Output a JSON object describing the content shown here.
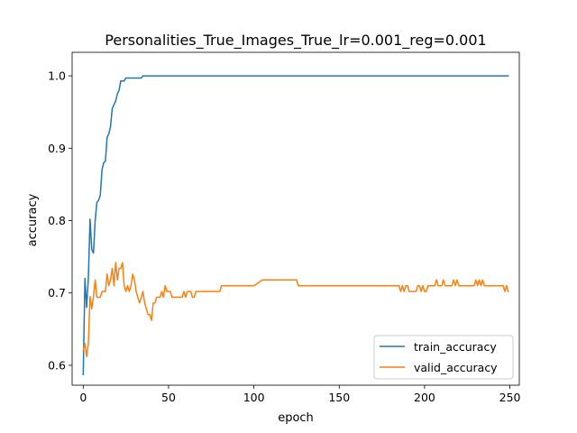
{
  "chart_data": {
    "type": "line",
    "title": "Personalities_True_Images_True_lr=0.001_reg=0.001",
    "xlabel": "epoch",
    "ylabel": "accuracy",
    "xlim": [
      -6.5,
      255.5
    ],
    "ylim": [
      0.5725,
      1.0325
    ],
    "xticks": [
      0,
      50,
      100,
      150,
      200,
      250
    ],
    "yticks": [
      0.6,
      0.7,
      0.8,
      0.9,
      1.0
    ],
    "ytick_labels": [
      "0.6",
      "0.7",
      "0.8",
      "0.9",
      "1.0"
    ],
    "grid": false,
    "legend_position": "lower right",
    "series": [
      {
        "name": "train_accuracy",
        "color": "#1f77b4",
        "x": [
          0,
          1,
          2,
          3,
          4,
          5,
          6,
          7,
          8,
          9,
          10,
          11,
          12,
          13,
          14,
          15,
          16,
          17,
          18,
          19,
          20,
          21,
          22,
          23,
          24,
          25,
          26,
          27,
          28,
          29,
          30,
          31,
          32,
          33,
          34,
          35,
          36,
          37,
          38,
          39,
          40,
          249
        ],
        "y": [
          0.587,
          0.72,
          0.68,
          0.72,
          0.802,
          0.76,
          0.755,
          0.8,
          0.825,
          0.828,
          0.835,
          0.87,
          0.88,
          0.882,
          0.915,
          0.92,
          0.93,
          0.955,
          0.96,
          0.965,
          0.975,
          0.98,
          0.993,
          0.993,
          0.993,
          0.997,
          0.997,
          0.997,
          0.997,
          0.997,
          0.997,
          0.997,
          0.997,
          0.997,
          0.997,
          1.0,
          1.0,
          1.0,
          1.0,
          1.0,
          1.0,
          1.0
        ]
      },
      {
        "name": "valid_accuracy",
        "color": "#ff7f0e",
        "x": [
          0,
          1,
          2,
          3,
          4,
          5,
          6,
          7,
          8,
          9,
          10,
          11,
          12,
          13,
          14,
          15,
          16,
          17,
          18,
          19,
          20,
          21,
          22,
          23,
          24,
          25,
          26,
          27,
          28,
          29,
          30,
          31,
          32,
          33,
          34,
          35,
          36,
          37,
          38,
          39,
          40,
          41,
          42,
          43,
          44,
          45,
          46,
          47,
          48,
          49,
          50,
          51,
          52,
          53,
          54,
          55,
          56,
          57,
          58,
          59,
          60,
          61,
          62,
          63,
          64,
          65,
          66,
          67,
          68,
          69,
          70,
          80,
          81,
          82,
          100,
          105,
          106,
          125,
          126,
          185,
          186,
          187,
          188,
          189,
          190,
          191,
          195,
          196,
          197,
          198,
          199,
          200,
          201,
          202,
          203,
          204,
          205,
          206,
          207,
          208,
          209,
          210,
          211,
          212,
          213,
          214,
          215,
          216,
          217,
          218,
          219,
          220,
          221,
          222,
          223,
          224,
          225,
          226,
          227,
          228,
          229,
          230,
          231,
          232,
          233,
          234,
          235,
          236,
          237,
          238,
          239,
          240,
          245,
          246,
          247,
          248,
          249
        ],
        "y": [
          0.62,
          0.63,
          0.612,
          0.63,
          0.695,
          0.678,
          0.695,
          0.718,
          0.694,
          0.694,
          0.694,
          0.702,
          0.702,
          0.702,
          0.726,
          0.71,
          0.718,
          0.734,
          0.71,
          0.742,
          0.718,
          0.734,
          0.734,
          0.742,
          0.71,
          0.702,
          0.71,
          0.702,
          0.71,
          0.726,
          0.718,
          0.702,
          0.694,
          0.686,
          0.694,
          0.702,
          0.686,
          0.678,
          0.67,
          0.67,
          0.662,
          0.686,
          0.686,
          0.694,
          0.694,
          0.694,
          0.702,
          0.694,
          0.71,
          0.702,
          0.702,
          0.702,
          0.694,
          0.694,
          0.694,
          0.694,
          0.694,
          0.694,
          0.694,
          0.702,
          0.694,
          0.702,
          0.702,
          0.702,
          0.694,
          0.694,
          0.702,
          0.702,
          0.702,
          0.702,
          0.702,
          0.702,
          0.71,
          0.71,
          0.71,
          0.718,
          0.718,
          0.718,
          0.71,
          0.71,
          0.702,
          0.71,
          0.702,
          0.71,
          0.71,
          0.702,
          0.702,
          0.71,
          0.71,
          0.702,
          0.71,
          0.702,
          0.702,
          0.71,
          0.71,
          0.71,
          0.71,
          0.71,
          0.718,
          0.71,
          0.71,
          0.71,
          0.718,
          0.71,
          0.71,
          0.71,
          0.71,
          0.71,
          0.718,
          0.71,
          0.718,
          0.71,
          0.71,
          0.71,
          0.71,
          0.71,
          0.71,
          0.71,
          0.71,
          0.71,
          0.71,
          0.718,
          0.71,
          0.718,
          0.71,
          0.718,
          0.71,
          0.71,
          0.71,
          0.71,
          0.71,
          0.71,
          0.71,
          0.71,
          0.702,
          0.71,
          0.702
        ]
      }
    ]
  }
}
